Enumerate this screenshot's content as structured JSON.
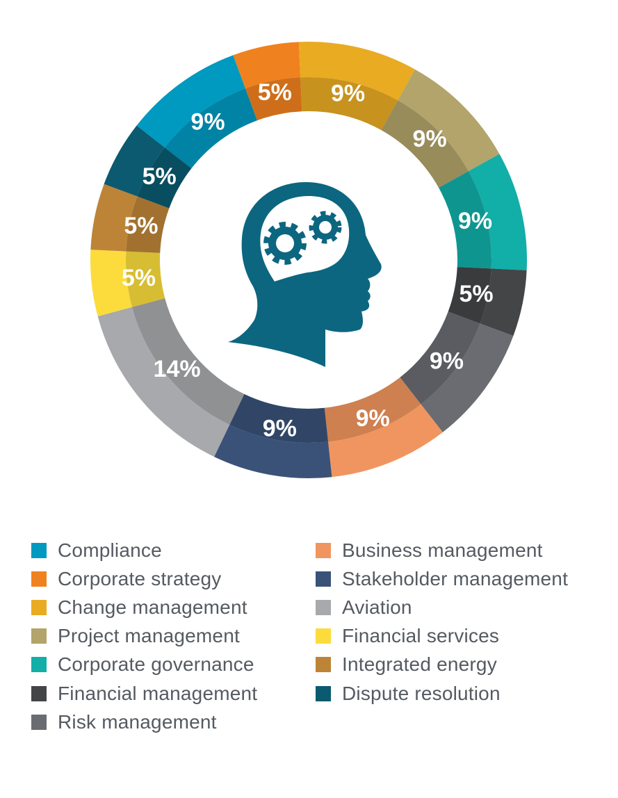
{
  "chart_data": {
    "type": "pie",
    "variant": "donut",
    "center_icon": "head-with-gears-icon",
    "legend_placement": "bottom",
    "unit": "%",
    "slices": [
      {
        "label": "Compliance",
        "value": 9,
        "display": "9%",
        "color": "#0099bf"
      },
      {
        "label": "Corporate strategy",
        "value": 5,
        "display": "5%",
        "color": "#f0811f"
      },
      {
        "label": "Change management",
        "value": 9,
        "display": "9%",
        "color": "#e8ab22"
      },
      {
        "label": "Project management",
        "value": 9,
        "display": "9%",
        "color": "#b2a46b"
      },
      {
        "label": "Corporate governance",
        "value": 9,
        "display": "9%",
        "color": "#12aea8"
      },
      {
        "label": "Financial management",
        "value": 5,
        "display": "5%",
        "color": "#434547"
      },
      {
        "label": "Risk management",
        "value": 9,
        "display": "9%",
        "color": "#6a6c71"
      },
      {
        "label": "Business management",
        "value": 9,
        "display": "9%",
        "color": "#f0955f"
      },
      {
        "label": "Stakeholder management",
        "value": 9,
        "display": "9%",
        "color": "#3a5278"
      },
      {
        "label": "Aviation",
        "value": 14,
        "display": "14%",
        "color": "#a7a9ac"
      },
      {
        "label": "Financial services",
        "value": 5,
        "display": "5%",
        "color": "#fbdc3c"
      },
      {
        "label": "Integrated energy",
        "value": 5,
        "display": "5%",
        "color": "#bd8438"
      },
      {
        "label": "Dispute resolution",
        "value": 5,
        "display": "5%",
        "color": "#0b5a70"
      }
    ]
  },
  "colors": {
    "icon": "#0c6680",
    "slice_label": "#ffffff",
    "legend_text": "#555a61"
  }
}
